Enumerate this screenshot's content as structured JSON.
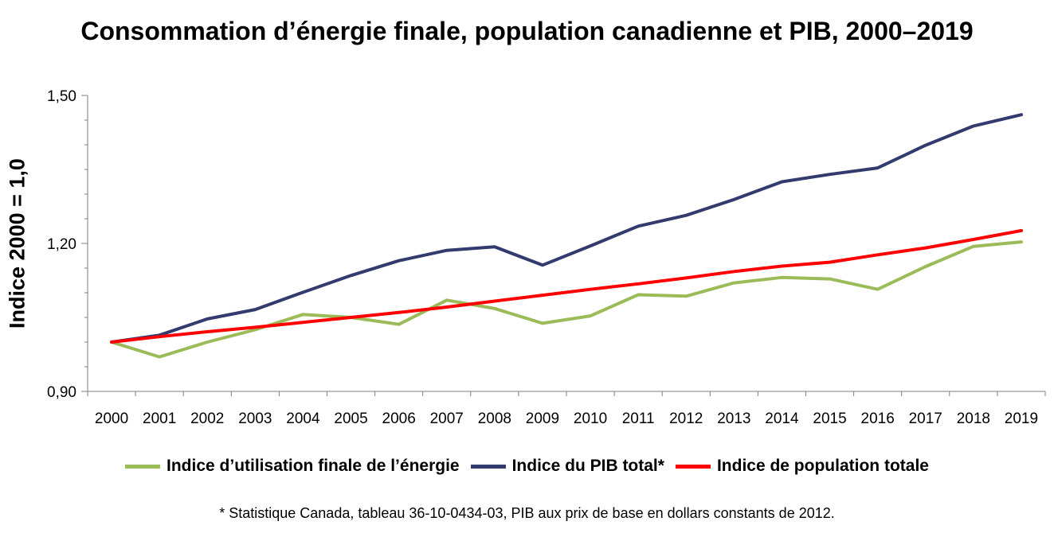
{
  "chart_data": {
    "type": "line",
    "title": "Consommation d’énergie finale, population canadienne et PIB, 2000–2019",
    "ylabel": "Indice 2000 = 1,0",
    "xlabel": "",
    "ylim": [
      0.9,
      1.5
    ],
    "yticks": [
      {
        "value": 0.9,
        "label": "0,90"
      },
      {
        "value": 1.2,
        "label": "1,20"
      },
      {
        "value": 1.5,
        "label": "1,50"
      }
    ],
    "categories": [
      "2000",
      "2001",
      "2002",
      "2003",
      "2004",
      "2005",
      "2006",
      "2007",
      "2008",
      "2009",
      "2010",
      "2011",
      "2012",
      "2013",
      "2014",
      "2015",
      "2016",
      "2017",
      "2018",
      "2019"
    ],
    "series": [
      {
        "name": "Indice d’utilisation finale de l’énergie",
        "color": "#9bbb59",
        "values": [
          1.0,
          0.97,
          1.0,
          1.025,
          1.056,
          1.05,
          1.036,
          1.085,
          1.068,
          1.038,
          1.053,
          1.096,
          1.093,
          1.12,
          1.131,
          1.128,
          1.107,
          1.153,
          1.194,
          1.203
        ]
      },
      {
        "name": "Indice du PIB total*",
        "color": "#323a6e",
        "values": [
          1.0,
          1.014,
          1.047,
          1.066,
          1.101,
          1.135,
          1.165,
          1.186,
          1.193,
          1.156,
          1.195,
          1.235,
          1.257,
          1.289,
          1.325,
          1.34,
          1.353,
          1.399,
          1.438,
          1.461
        ]
      },
      {
        "name": "Indice de population totale",
        "color": "#ff0000",
        "values": [
          1.0,
          1.011,
          1.021,
          1.03,
          1.04,
          1.05,
          1.06,
          1.071,
          1.083,
          1.095,
          1.107,
          1.118,
          1.13,
          1.143,
          1.154,
          1.162,
          1.177,
          1.191,
          1.208,
          1.226
        ]
      }
    ],
    "legend_position": "bottom",
    "grid": false
  },
  "footnote": "* Statistique Canada, tableau 36-10-0434-03, PIB aux prix de base en dollars constants de 2012."
}
